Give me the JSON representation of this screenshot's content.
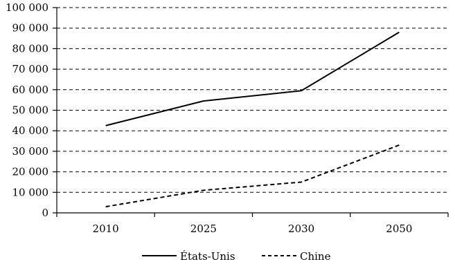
{
  "chart_data": {
    "type": "line",
    "categories": [
      "2010",
      "2025",
      "2030",
      "2050"
    ],
    "series": [
      {
        "name": "États-Unis",
        "values": [
          42500,
          54500,
          59500,
          88000
        ],
        "style": "solid",
        "color": "#000000"
      },
      {
        "name": "Chine",
        "values": [
          3000,
          11000,
          15000,
          33000
        ],
        "style": "dashed",
        "color": "#000000"
      }
    ],
    "ylim": [
      0,
      100000
    ],
    "ytick_labels": [
      "0",
      "10 000",
      "20 000",
      "30 000",
      "40 000",
      "50 000",
      "60 000",
      "70 000",
      "80 000",
      "90 000",
      "100 000"
    ],
    "grid": "horizontal dashed",
    "legend_position": "bottom"
  }
}
